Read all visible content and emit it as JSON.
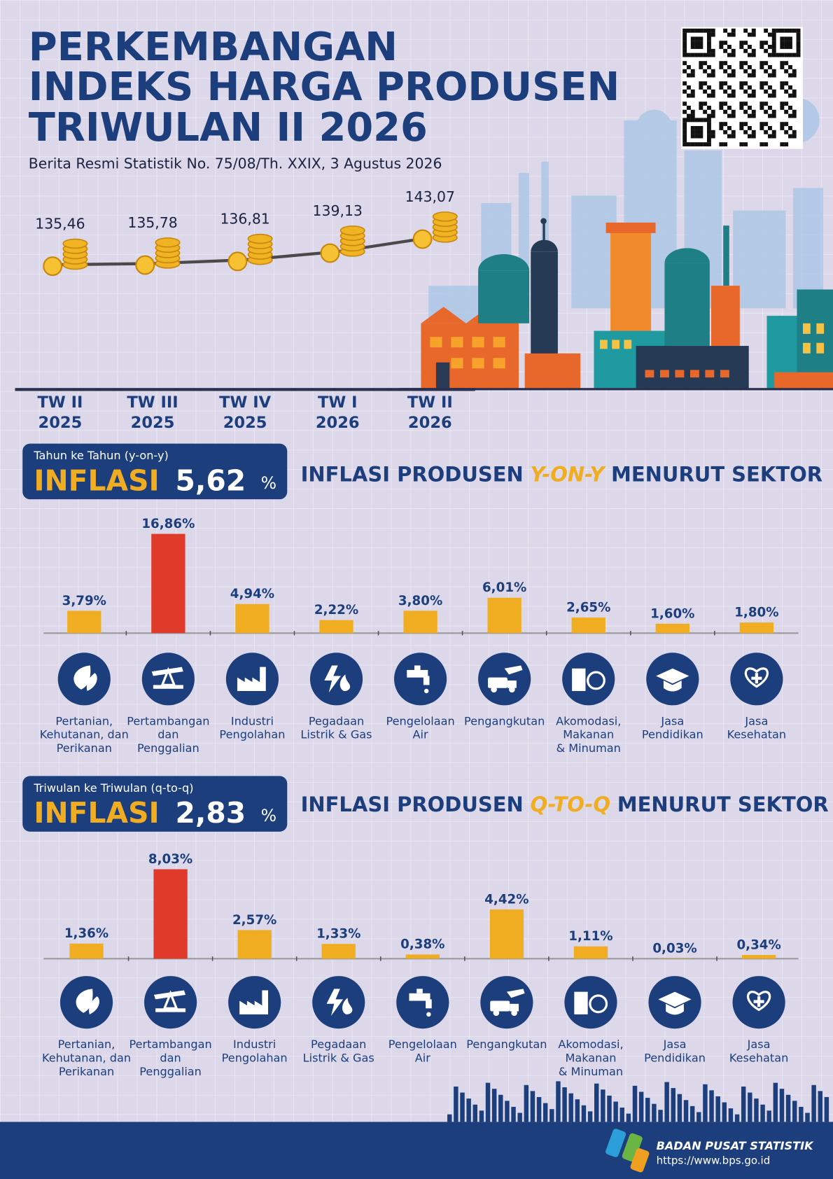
{
  "header": {
    "title": [
      "PERKEMBANGAN",
      "INDEKS HARGA PRODUSEN",
      "TRIWULAN II 2026"
    ],
    "subtitle": "Berita Resmi Statistik No. 75/08/Th. XXIX, 3 Agustus 2026"
  },
  "summaries": [
    {
      "caption": "Tahun ke Tahun (y-on-y)",
      "label": "INFLASI",
      "value": "5,62",
      "unit": "%"
    },
    {
      "caption": "Triwulan ke Triwulan (q-to-q)",
      "label": "INFLASI",
      "value": "2,83",
      "unit": "%"
    }
  ],
  "chart_data": [
    {
      "type": "line",
      "categories": [
        "TW II 2025",
        "TW III 2025",
        "TW IV 2025",
        "TW I 2026",
        "TW II 2026"
      ],
      "values": [
        135.46,
        135.78,
        136.81,
        139.13,
        143.07
      ],
      "value_labels": [
        "135,46",
        "135,78",
        "136,81",
        "139,13",
        "143,07"
      ],
      "color": "#4a4a4a"
    },
    {
      "type": "bar",
      "title": [
        "INFLASI PRODUSEN",
        "Y-ON-Y",
        "MENURUT SEKTOR"
      ],
      "categories": [
        "Pertanian,\nKehutanan, dan\nPerikanan",
        "Pertambangan\ndan\nPenggalian",
        "Industri\nPengolahan",
        "Pegadaan\nListrik & Gas",
        "Pengelolaan\nAir",
        "Pengangkutan",
        "Akomodasi,\nMakanan\n& Minuman",
        "Jasa\nPendidikan",
        "Jasa\nKesehatan"
      ],
      "values": [
        3.79,
        16.86,
        4.94,
        2.22,
        3.8,
        6.01,
        2.65,
        1.6,
        1.8
      ],
      "value_labels": [
        "3,79%",
        "16,86%",
        "4,94%",
        "2,22%",
        "3,80%",
        "6,01%",
        "2,65%",
        "1,60%",
        "1,80%"
      ],
      "colors": [
        "#f0ad22",
        "#e03a2a",
        "#f0ad22",
        "#f0ad22",
        "#f0ad22",
        "#f0ad22",
        "#f0ad22",
        "#f0ad22",
        "#f0ad22"
      ]
    },
    {
      "type": "bar",
      "title": [
        "INFLASI PRODUSEN",
        "Q-TO-Q",
        "MENURUT SEKTOR"
      ],
      "categories": [
        "Pertanian,\nKehutanan, dan\nPerikanan",
        "Pertambangan\ndan\nPenggalian",
        "Industri\nPengolahan",
        "Pegadaan\nListrik & Gas",
        "Pengelolaan\nAir",
        "Pengangkutan",
        "Akomodasi,\nMakanan\n& Minuman",
        "Jasa\nPendidikan",
        "Jasa\nKesehatan"
      ],
      "values": [
        1.36,
        8.03,
        2.57,
        1.33,
        0.38,
        4.42,
        1.11,
        0.03,
        0.34
      ],
      "value_labels": [
        "1,36%",
        "8,03%",
        "2,57%",
        "1,33%",
        "0,38%",
        "4,42%",
        "1,11%",
        "0,03%",
        "0,34%"
      ],
      "colors": [
        "#f0ad22",
        "#e03a2a",
        "#f0ad22",
        "#f0ad22",
        "#f0ad22",
        "#f0ad22",
        "#f0ad22",
        "#f0ad22",
        "#f0ad22"
      ]
    }
  ],
  "footer": {
    "org": "BADAN PUSAT STATISTIK",
    "url": "https://www.bps.go.id"
  }
}
